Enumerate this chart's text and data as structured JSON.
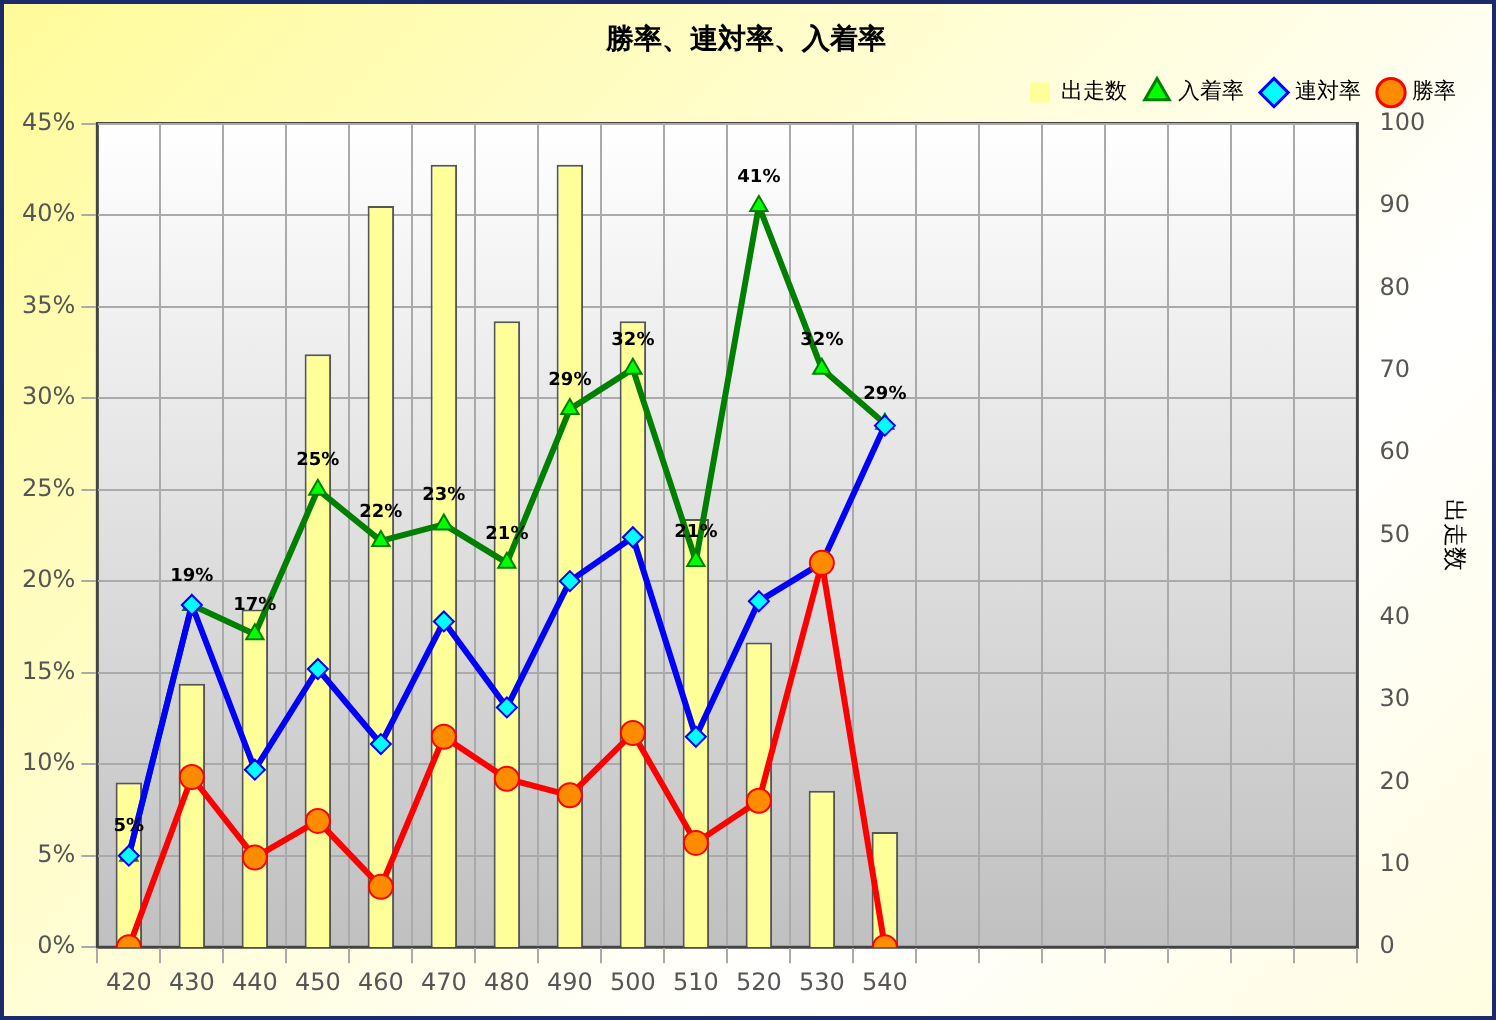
{
  "chart_data": {
    "type": "bar",
    "title": "勝率、連対率、入着率",
    "categories": [
      "420",
      "430",
      "440",
      "450",
      "460",
      "470",
      "480",
      "490",
      "500",
      "510",
      "520",
      "530",
      "540",
      null,
      null,
      null,
      null,
      null,
      null,
      null
    ],
    "series": [
      {
        "name": "出走数",
        "axis": "y2",
        "color": "#ffff99",
        "values": [
          20,
          32,
          41,
          72,
          90,
          95,
          76,
          95,
          76,
          52,
          37,
          19,
          14,
          null,
          null,
          null,
          null,
          null,
          null,
          null
        ]
      },
      {
        "name": "入着率",
        "type": "line",
        "marker": "triangle",
        "color": "#008000",
        "values": [
          5.0,
          18.7,
          17.1,
          25.0,
          22.2,
          23.1,
          21.0,
          29.4,
          31.6,
          21.1,
          40.5,
          31.6,
          28.6,
          null,
          null,
          null,
          null,
          null,
          null,
          null
        ],
        "value_labels": [
          "5%",
          "19%",
          "17%",
          "25%",
          "22%",
          "23%",
          "21%",
          "29%",
          "32%",
          "21%",
          "41%",
          "32%",
          "29%",
          null,
          null,
          null,
          null,
          null,
          null,
          null
        ]
      },
      {
        "name": "連対率",
        "type": "line",
        "marker": "diamond",
        "color": "#0000ff",
        "values": [
          5.0,
          18.7,
          9.7,
          15.2,
          11.1,
          17.8,
          13.1,
          20.0,
          22.4,
          11.5,
          18.9,
          21.0,
          28.5,
          null,
          null,
          null,
          null,
          null,
          null,
          null
        ]
      },
      {
        "name": "勝率",
        "type": "line",
        "marker": "circle",
        "color": "#ff0000",
        "values": [
          0,
          9.3,
          4.9,
          6.9,
          3.3,
          11.5,
          9.2,
          8.3,
          11.7,
          5.7,
          8.0,
          21.0,
          0,
          null,
          null,
          null,
          null,
          null,
          null,
          null
        ]
      }
    ],
    "ylim": [
      0,
      45
    ],
    "yticks": [
      {
        "value": 0,
        "label": "0%"
      },
      {
        "value": 5,
        "label": "5%"
      },
      {
        "value": 10,
        "label": "10%"
      },
      {
        "value": 15,
        "label": "15%"
      },
      {
        "value": 20,
        "label": "20%"
      },
      {
        "value": 25,
        "label": "25%"
      },
      {
        "value": 30,
        "label": "30%"
      },
      {
        "value": 35,
        "label": "35%"
      },
      {
        "value": 40,
        "label": "40%"
      },
      {
        "value": 45,
        "label": "45%"
      }
    ],
    "y2label": "出走数",
    "y2lim": [
      0,
      100
    ],
    "y2ticks": [
      0,
      10,
      20,
      30,
      40,
      50,
      60,
      70,
      80,
      90,
      100
    ],
    "grid": true,
    "legend": "top right"
  }
}
